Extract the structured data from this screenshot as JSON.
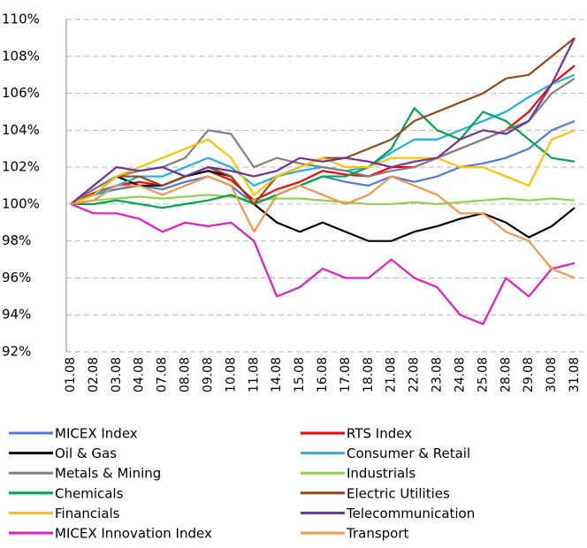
{
  "chart_data": {
    "type": "line",
    "categories": [
      "01.08",
      "02.08",
      "03.08",
      "04.08",
      "07.08",
      "08.08",
      "09.08",
      "10.08",
      "11.08",
      "14.08",
      "15.08",
      "16.08",
      "17.08",
      "18.08",
      "21.08",
      "22.08",
      "23.08",
      "24.08",
      "25.08",
      "28.08",
      "29.08",
      "30.08",
      "31.08"
    ],
    "ylim": [
      92,
      110
    ],
    "yticks": [
      {
        "value": 92,
        "label": "92%"
      },
      {
        "value": 94,
        "label": "94%"
      },
      {
        "value": 96,
        "label": "96%"
      },
      {
        "value": 98,
        "label": "98%"
      },
      {
        "value": 100,
        "label": "100%"
      },
      {
        "value": 102,
        "label": "102%"
      },
      {
        "value": 104,
        "label": "104%"
      },
      {
        "value": 106,
        "label": "106%"
      },
      {
        "value": 108,
        "label": "108%"
      },
      {
        "value": 110,
        "label": "110%"
      }
    ],
    "grid": true,
    "series": [
      {
        "name": "MICEX Index",
        "color": "#4a7ae8",
        "values": [
          100,
          100.5,
          100.8,
          101,
          100.8,
          101.2,
          101.5,
          101,
          100,
          100.5,
          101,
          101.5,
          101.2,
          101,
          101.5,
          101.2,
          101.5,
          102,
          102.2,
          102.5,
          103,
          104,
          104.5
        ]
      },
      {
        "name": "RTS Index",
        "color": "#ff0000",
        "values": [
          100,
          100.6,
          101,
          101.2,
          101,
          101.5,
          101.8,
          101.3,
          100.2,
          100.8,
          101.2,
          101.8,
          101.6,
          101.5,
          102,
          102,
          102.5,
          103,
          103.5,
          104,
          105,
          106.5,
          107.5
        ]
      },
      {
        "name": "Oil & Gas",
        "color": "#000000",
        "values": [
          100,
          100.8,
          101.5,
          101,
          101,
          101.5,
          101.8,
          101.5,
          100,
          99,
          98.5,
          99,
          98.5,
          98,
          98,
          98.5,
          98.8,
          99.2,
          99.5,
          99,
          98.2,
          98.8,
          99.8
        ]
      },
      {
        "name": "Consumer & Retail",
        "color": "#1fb0ea",
        "values": [
          100,
          100.5,
          101,
          101.5,
          101.5,
          102,
          102.5,
          102,
          101,
          101.5,
          101.8,
          102,
          101.8,
          102,
          102.8,
          103.5,
          103.5,
          104,
          104.5,
          105,
          105.8,
          106.5,
          107
        ]
      },
      {
        "name": "Metals & Mining",
        "color": "#808080",
        "values": [
          100,
          100.8,
          101.5,
          101.8,
          102,
          102.5,
          104,
          103.8,
          102,
          102.5,
          102.2,
          102,
          101.8,
          101.5,
          101.8,
          102,
          102.5,
          103,
          103.5,
          104,
          104.5,
          106,
          106.8
        ]
      },
      {
        "name": "Industrials",
        "color": "#92d050",
        "values": [
          100,
          100.2,
          100.3,
          100.4,
          100.3,
          100.4,
          100.5,
          100.4,
          100.2,
          100.3,
          100.3,
          100.2,
          100.1,
          100,
          100,
          100.1,
          100,
          100.1,
          100.2,
          100.3,
          100.2,
          100.3,
          100.2
        ]
      },
      {
        "name": "Chemicals",
        "color": "#00a550",
        "values": [
          100,
          100,
          100.2,
          100,
          99.8,
          100,
          100.2,
          100.5,
          100,
          100.5,
          101,
          101.5,
          101.5,
          102,
          103,
          105.2,
          104,
          103.5,
          105,
          104.5,
          103.5,
          102.5,
          102.3
        ]
      },
      {
        "name": "Electric Utilities",
        "color": "#984816",
        "values": [
          100,
          100.5,
          101.5,
          101.5,
          101,
          101.5,
          102,
          101.5,
          100,
          101.5,
          102,
          102.5,
          102.5,
          103,
          103.5,
          104.5,
          105,
          105.5,
          106,
          106.8,
          107,
          108,
          109
        ]
      },
      {
        "name": "Financials",
        "color": "#ffc000",
        "values": [
          100,
          100.5,
          101.5,
          102,
          102.5,
          103,
          103.5,
          102.5,
          100.5,
          101.5,
          102,
          102.5,
          102,
          102,
          102.5,
          102.5,
          102.5,
          102,
          102,
          101.5,
          101,
          103.5,
          104
        ]
      },
      {
        "name": "Telecommunication",
        "color": "#7030a0",
        "values": [
          100,
          101,
          102,
          101.8,
          102,
          101.5,
          102,
          101.8,
          101.5,
          101.8,
          102.5,
          102.3,
          102.5,
          102.3,
          102,
          102.3,
          102.5,
          103.5,
          104,
          103.8,
          104.5,
          106.5,
          109
        ]
      },
      {
        "name": "MICEX Innovation Index",
        "color": "#e619c8",
        "values": [
          100,
          99.5,
          99.5,
          99.2,
          98.5,
          99,
          98.8,
          99,
          98,
          95,
          95.5,
          96.5,
          96,
          96,
          97,
          96,
          95.5,
          94,
          93.5,
          96,
          95,
          96.5,
          96.8
        ]
      },
      {
        "name": "Transport",
        "color": "#f79646",
        "values": [
          100,
          100.2,
          101,
          101,
          100.5,
          101,
          101.5,
          101,
          98.5,
          100.5,
          101,
          100.5,
          100,
          100.5,
          101.5,
          101,
          100.5,
          99.5,
          99.5,
          98.5,
          98,
          96.5,
          96
        ]
      }
    ]
  }
}
